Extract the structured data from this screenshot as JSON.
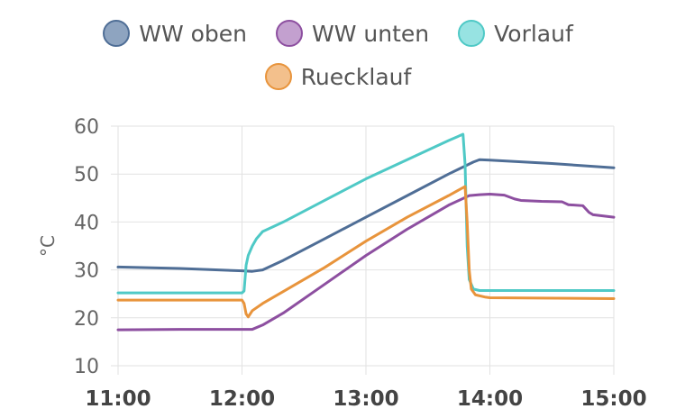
{
  "legend": {
    "row1": [
      {
        "label": "WW oben",
        "stroke": "#4f6e96",
        "fill": "#8ea4c0"
      },
      {
        "label": "WW unten",
        "stroke": "#8d4fa0",
        "fill": "#c3a0cf"
      },
      {
        "label": "Vorlauf",
        "stroke": "#4fc9c6",
        "fill": "#97e3e2"
      }
    ],
    "row2": [
      {
        "label": "Ruecklauf",
        "stroke": "#e8943c",
        "fill": "#f3c08c"
      }
    ]
  },
  "chart_data": {
    "type": "line",
    "title": "",
    "xlabel": "",
    "ylabel": "°C",
    "ylim": [
      10,
      60
    ],
    "yticks": [
      "10",
      "20",
      "30",
      "40",
      "50",
      "60"
    ],
    "xlim": [
      "11:00",
      "15:00"
    ],
    "xticks": [
      "11:00",
      "12:00",
      "13:00",
      "14:00",
      "15:00"
    ],
    "grid": true,
    "legend_position": "top",
    "series": [
      {
        "name": "WW oben",
        "color": "#4f6e96",
        "points": [
          [
            "11:00",
            30.6
          ],
          [
            "11:30",
            30.3
          ],
          [
            "12:00",
            29.8
          ],
          [
            "12:05",
            29.7
          ],
          [
            "12:10",
            30.0
          ],
          [
            "12:20",
            32.0
          ],
          [
            "12:40",
            36.5
          ],
          [
            "13:00",
            41.0
          ],
          [
            "13:20",
            45.5
          ],
          [
            "13:40",
            50.0
          ],
          [
            "13:52",
            52.5
          ],
          [
            "13:55",
            53.0
          ],
          [
            "14:00",
            52.9
          ],
          [
            "14:30",
            52.2
          ],
          [
            "15:00",
            51.3
          ]
        ]
      },
      {
        "name": "WW unten",
        "color": "#8d4fa0",
        "points": [
          [
            "11:00",
            17.5
          ],
          [
            "11:30",
            17.6
          ],
          [
            "12:00",
            17.6
          ],
          [
            "12:05",
            17.6
          ],
          [
            "12:10",
            18.5
          ],
          [
            "12:20",
            21.0
          ],
          [
            "12:40",
            27.0
          ],
          [
            "13:00",
            33.0
          ],
          [
            "13:20",
            38.5
          ],
          [
            "13:40",
            43.5
          ],
          [
            "13:50",
            45.5
          ],
          [
            "13:55",
            45.7
          ],
          [
            "14:00",
            45.8
          ],
          [
            "14:07",
            45.6
          ],
          [
            "14:12",
            44.8
          ],
          [
            "14:15",
            44.5
          ],
          [
            "14:25",
            44.3
          ],
          [
            "14:35",
            44.2
          ],
          [
            "14:38",
            43.6
          ],
          [
            "14:45",
            43.4
          ],
          [
            "14:48",
            42.0
          ],
          [
            "14:50",
            41.5
          ],
          [
            "15:00",
            41.0
          ]
        ]
      },
      {
        "name": "Vorlauf",
        "color": "#4fc9c6",
        "points": [
          [
            "11:00",
            25.2
          ],
          [
            "12:00",
            25.2
          ],
          [
            "12:01",
            25.6
          ],
          [
            "12:02",
            31.0
          ],
          [
            "12:03",
            33.0
          ],
          [
            "12:05",
            35.0
          ],
          [
            "12:07",
            36.5
          ],
          [
            "12:10",
            38.0
          ],
          [
            "12:15",
            39.0
          ],
          [
            "12:20",
            40.0
          ],
          [
            "12:40",
            44.5
          ],
          [
            "13:00",
            49.0
          ],
          [
            "13:20",
            53.0
          ],
          [
            "13:40",
            57.0
          ],
          [
            "13:47",
            58.3
          ],
          [
            "13:48",
            52.0
          ],
          [
            "13:49",
            35.0
          ],
          [
            "13:50",
            28.0
          ],
          [
            "13:52",
            26.0
          ],
          [
            "13:55",
            25.7
          ],
          [
            "14:00",
            25.7
          ],
          [
            "15:00",
            25.7
          ]
        ]
      },
      {
        "name": "Ruecklauf",
        "color": "#e8943c",
        "points": [
          [
            "11:00",
            23.7
          ],
          [
            "12:00",
            23.7
          ],
          [
            "12:01",
            23.0
          ],
          [
            "12:02",
            20.8
          ],
          [
            "12:03",
            20.2
          ],
          [
            "12:05",
            21.5
          ],
          [
            "12:10",
            23.0
          ],
          [
            "12:20",
            25.5
          ],
          [
            "12:40",
            30.5
          ],
          [
            "13:00",
            36.0
          ],
          [
            "13:20",
            41.0
          ],
          [
            "13:40",
            45.5
          ],
          [
            "13:48",
            47.4
          ],
          [
            "13:49",
            40.0
          ],
          [
            "13:50",
            30.0
          ],
          [
            "13:51",
            26.0
          ],
          [
            "13:53",
            24.8
          ],
          [
            "13:58",
            24.3
          ],
          [
            "14:00",
            24.2
          ],
          [
            "15:00",
            24.0
          ]
        ]
      }
    ]
  }
}
